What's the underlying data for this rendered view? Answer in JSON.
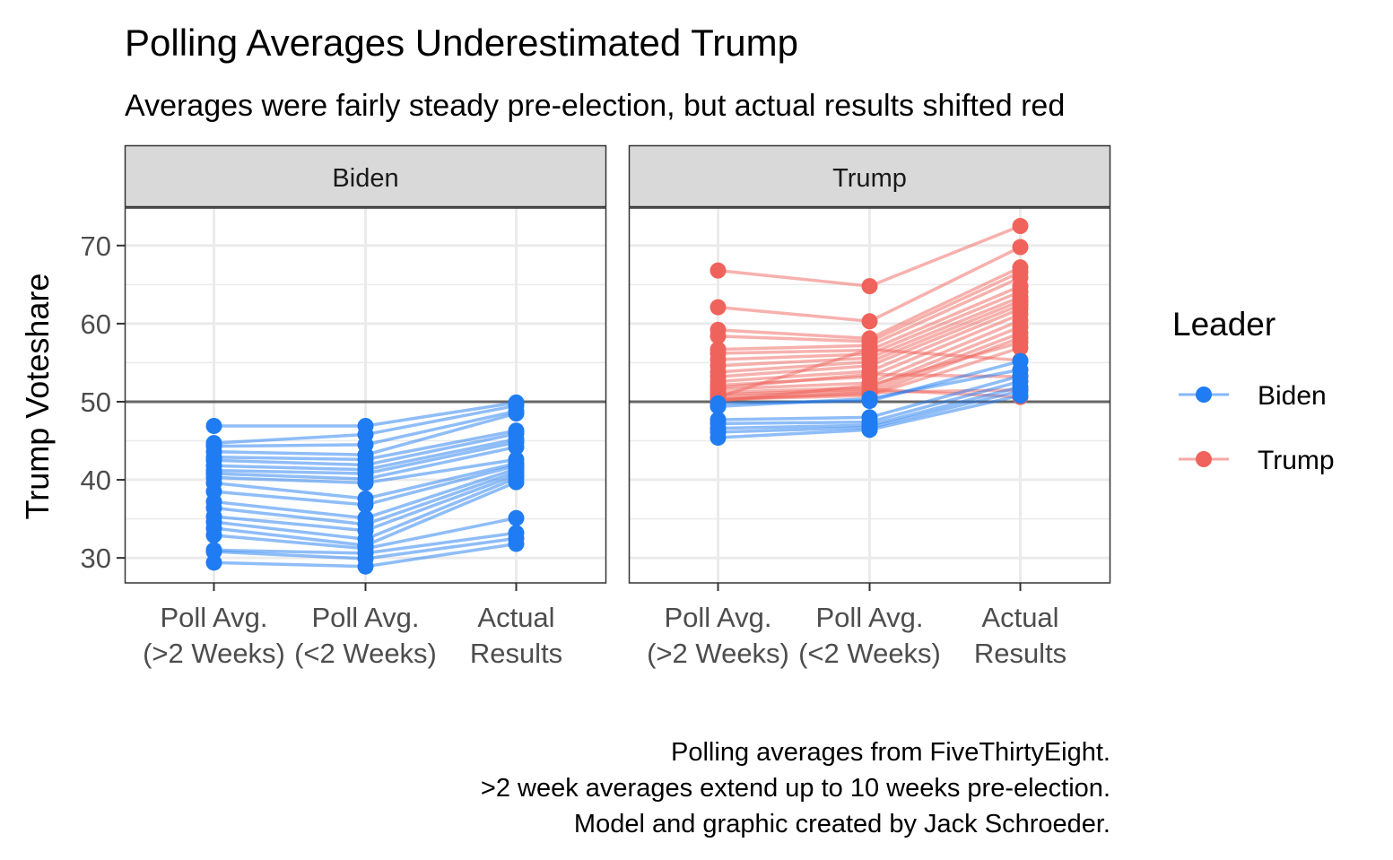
{
  "chart_data": {
    "type": "line",
    "title": "Polling Averages Underestimated Trump",
    "subtitle": "Averages were fairly steady pre-election, but actual results shifted red",
    "ylabel": "Trump Voteshare",
    "xlabel": "",
    "ylim": [
      26.8,
      74.8
    ],
    "yticks": [
      30,
      40,
      50,
      60,
      70
    ],
    "reference_line": 50,
    "grid": true,
    "x_categories": [
      [
        "Poll Avg.",
        "(>2 Weeks)"
      ],
      [
        "Poll Avg.",
        "(<2 Weeks)"
      ],
      [
        "Actual",
        "Results"
      ]
    ],
    "facets": [
      "Biden",
      "Trump"
    ],
    "legend": {
      "title": "Leader",
      "position": "right",
      "entries": [
        {
          "name": "Biden",
          "color": "#1f7cf2"
        },
        {
          "name": "Trump",
          "color": "#f0635c"
        }
      ]
    },
    "colors": {
      "Biden": "#1f7cf2",
      "Trump": "#f0635c"
    },
    "panels": [
      {
        "facet": "Biden",
        "series": [
          {
            "leader": "Biden",
            "values": [
              46.9,
              46.9,
              49.9
            ]
          },
          {
            "leader": "Biden",
            "values": [
              44.7,
              45.8,
              49.5
            ]
          },
          {
            "leader": "Biden",
            "values": [
              44.3,
              44.5,
              48.8
            ]
          },
          {
            "leader": "Biden",
            "values": [
              43.6,
              43.2,
              48.5
            ]
          },
          {
            "leader": "Biden",
            "values": [
              42.9,
              42.6,
              46.3
            ]
          },
          {
            "leader": "Biden",
            "values": [
              42.5,
              41.9,
              45.9
            ]
          },
          {
            "leader": "Biden",
            "values": [
              41.8,
              41.3,
              45.2
            ]
          },
          {
            "leader": "Biden",
            "values": [
              41.2,
              40.8,
              44.8
            ]
          },
          {
            "leader": "Biden",
            "values": [
              40.8,
              40.1,
              44.2
            ]
          },
          {
            "leader": "Biden",
            "values": [
              40.3,
              39.6,
              42.6
            ]
          },
          {
            "leader": "Biden",
            "values": [
              39.6,
              37.6,
              42.1
            ]
          },
          {
            "leader": "Biden",
            "values": [
              38.5,
              36.8,
              41.8
            ]
          },
          {
            "leader": "Biden",
            "values": [
              37.2,
              35.1,
              41.4
            ]
          },
          {
            "leader": "Biden",
            "values": [
              36.4,
              34.3,
              41.0
            ]
          },
          {
            "leader": "Biden",
            "values": [
              35.3,
              33.5,
              40.6
            ]
          },
          {
            "leader": "Biden",
            "values": [
              34.6,
              32.4,
              40.2
            ]
          },
          {
            "leader": "Biden",
            "values": [
              33.8,
              31.6,
              39.7
            ]
          },
          {
            "leader": "Biden",
            "values": [
              32.9,
              31.2,
              35.1
            ]
          },
          {
            "leader": "Biden",
            "values": [
              31.0,
              30.6,
              33.2
            ]
          },
          {
            "leader": "Biden",
            "values": [
              30.8,
              29.9,
              32.5
            ]
          },
          {
            "leader": "Biden",
            "values": [
              29.4,
              28.9,
              31.8
            ]
          }
        ]
      },
      {
        "facet": "Trump",
        "series": [
          {
            "leader": "Trump",
            "values": [
              66.8,
              64.8,
              72.5
            ]
          },
          {
            "leader": "Trump",
            "values": [
              62.1,
              60.3,
              69.8
            ]
          },
          {
            "leader": "Trump",
            "values": [
              59.2,
              58.1,
              67.2
            ]
          },
          {
            "leader": "Trump",
            "values": [
              58.4,
              57.7,
              66.6
            ]
          },
          {
            "leader": "Trump",
            "values": [
              56.7,
              57.2,
              65.9
            ]
          },
          {
            "leader": "Trump",
            "values": [
              56.2,
              56.6,
              64.8
            ]
          },
          {
            "leader": "Trump",
            "values": [
              55.4,
              56.1,
              64.1
            ]
          },
          {
            "leader": "Trump",
            "values": [
              54.6,
              55.6,
              63.4
            ]
          },
          {
            "leader": "Trump",
            "values": [
              53.8,
              55.1,
              62.9
            ]
          },
          {
            "leader": "Trump",
            "values": [
              53.2,
              54.6,
              62.4
            ]
          },
          {
            "leader": "Trump",
            "values": [
              52.6,
              53.9,
              61.9
            ]
          },
          {
            "leader": "Trump",
            "values": [
              52.1,
              53.2,
              61.2
            ]
          },
          {
            "leader": "Trump",
            "values": [
              51.6,
              52.4,
              60.4
            ]
          },
          {
            "leader": "Trump",
            "values": [
              51.2,
              51.8,
              59.6
            ]
          },
          {
            "leader": "Trump",
            "values": [
              50.7,
              51.4,
              58.8
            ]
          },
          {
            "leader": "Trump",
            "values": [
              50.4,
              51.0,
              58.2
            ]
          },
          {
            "leader": "Trump",
            "values": [
              50.1,
              52.1,
              57.6
            ]
          },
          {
            "leader": "Trump",
            "values": [
              50.3,
              50.8,
              56.9
            ]
          },
          {
            "leader": "Trump",
            "values": [
              50.6,
              56.7,
              55.3
            ]
          },
          {
            "leader": "Trump",
            "values": [
              51.8,
              53.5,
              53.2
            ]
          },
          {
            "leader": "Trump",
            "values": [
              50.2,
              51.2,
              51.5
            ]
          },
          {
            "leader": "Trump",
            "values": [
              50.9,
              51.6,
              50.6
            ]
          },
          {
            "leader": "Biden",
            "values": [
              49.8,
              50.1,
              55.2
            ]
          },
          {
            "leader": "Biden",
            "values": [
              49.4,
              50.4,
              54.1
            ]
          },
          {
            "leader": "Biden",
            "values": [
              47.7,
              48.0,
              53.3
            ]
          },
          {
            "leader": "Biden",
            "values": [
              47.2,
              47.4,
              52.6
            ]
          },
          {
            "leader": "Biden",
            "values": [
              46.6,
              47.0,
              51.9
            ]
          },
          {
            "leader": "Biden",
            "values": [
              46.1,
              46.7,
              51.4
            ]
          },
          {
            "leader": "Biden",
            "values": [
              45.4,
              46.4,
              50.8
            ]
          }
        ]
      }
    ],
    "caption": [
      "Polling averages from FiveThirtyEight.",
      ">2 week averages extend up to 10 weeks pre-election.",
      "Model and graphic created by Jack Schroeder."
    ]
  }
}
